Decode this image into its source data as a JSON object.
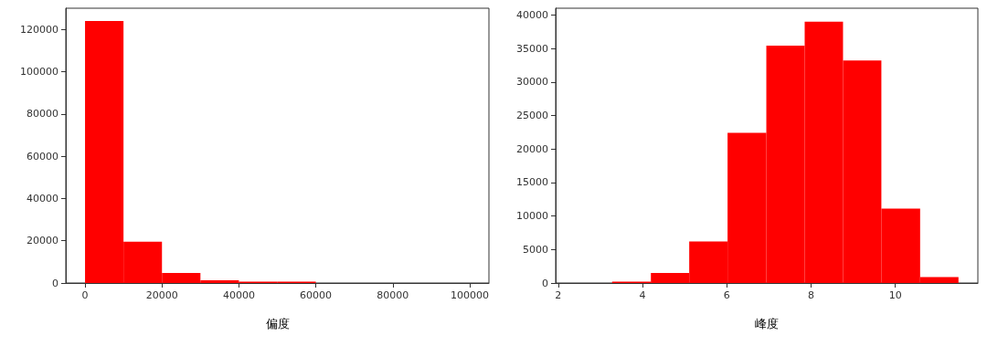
{
  "chart_data": [
    {
      "type": "histogram",
      "xlabel": "偏度",
      "color": "#ff0000",
      "bins": [
        0,
        10000,
        20000,
        30000,
        40000,
        50000,
        60000,
        70000,
        80000,
        90000,
        100000
      ],
      "values": [
        124000,
        19500,
        4800,
        1300,
        600,
        600,
        0,
        0,
        0,
        0
      ],
      "xlim": [
        -5000,
        105000
      ],
      "xticks": [
        0,
        20000,
        40000,
        60000,
        80000,
        100000
      ],
      "ylim": [
        0,
        130000
      ],
      "yticks": [
        0,
        20000,
        40000,
        60000,
        80000,
        100000,
        120000
      ]
    },
    {
      "type": "histogram",
      "xlabel": "峰度",
      "color": "#ff0000",
      "bins": [
        2.37,
        3.28,
        4.2,
        5.11,
        6.02,
        6.94,
        7.85,
        8.76,
        9.67,
        10.59,
        11.5
      ],
      "values": [
        0,
        200,
        1500,
        6200,
        22400,
        35400,
        39000,
        33200,
        11100,
        900
      ],
      "xlim": [
        1.94,
        11.96
      ],
      "xticks": [
        2,
        4,
        6,
        8,
        10
      ],
      "ylim": [
        0,
        41000
      ],
      "yticks": [
        0,
        5000,
        10000,
        15000,
        20000,
        25000,
        30000,
        35000,
        40000
      ]
    }
  ]
}
